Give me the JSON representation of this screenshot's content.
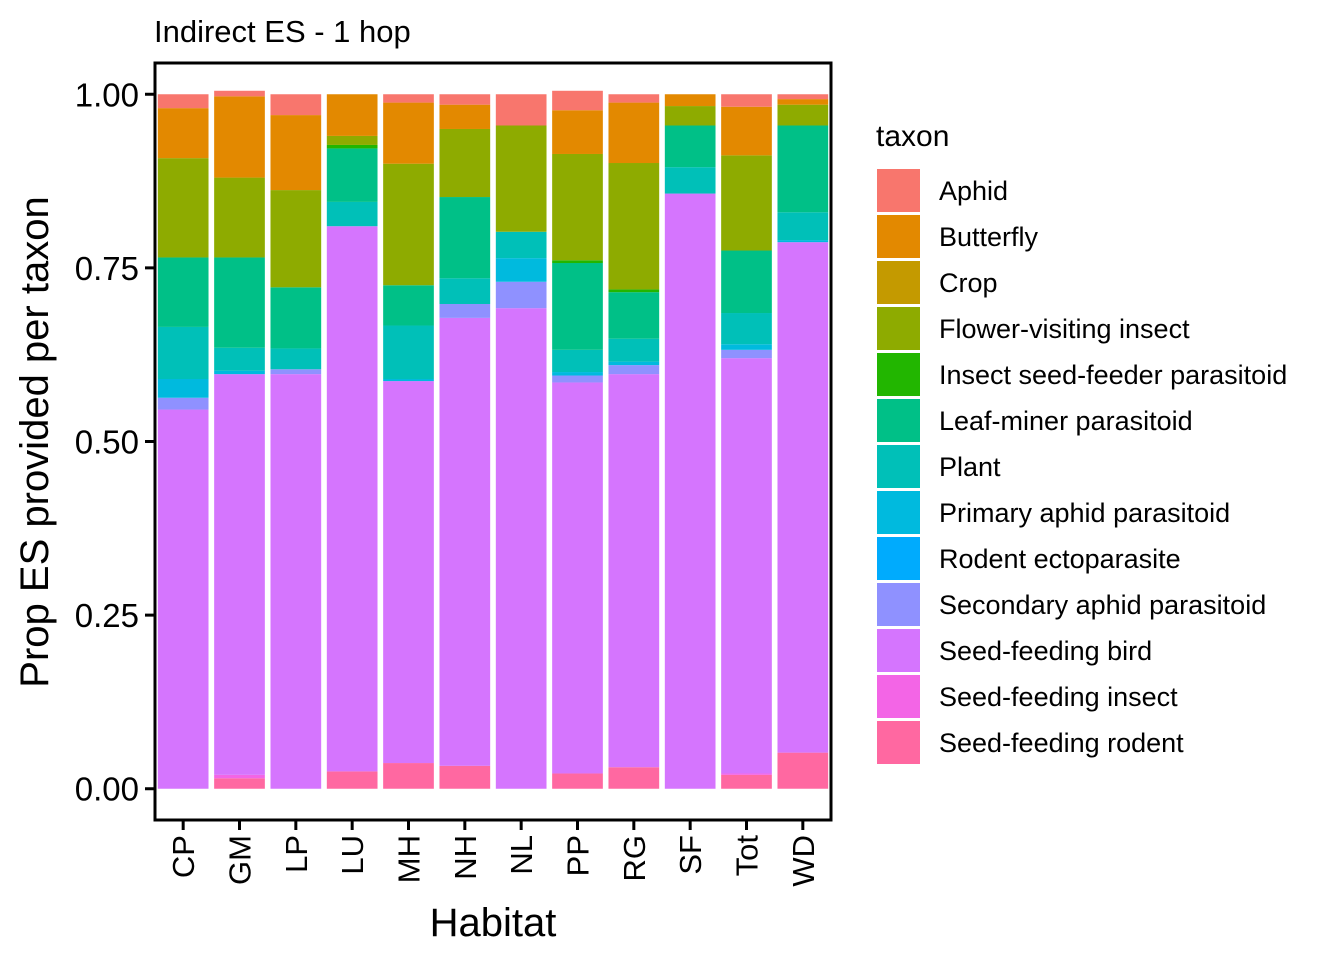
{
  "chart_data": {
    "type": "bar",
    "stacked": true,
    "title": "Indirect ES - 1 hop",
    "xlabel": "Habitat",
    "ylabel": "Prop ES provided per taxon",
    "ylim": [
      -0.045,
      1.045
    ],
    "yticks": [
      "0.00",
      "0.25",
      "0.50",
      "0.75",
      "1.00"
    ],
    "ytick_values": [
      0,
      0.25,
      0.5,
      0.75,
      1.0
    ],
    "grid": false,
    "legend_title": "taxon",
    "legend_position": "right",
    "categories": [
      "CP",
      "GM",
      "LP",
      "LU",
      "MH",
      "NH",
      "NL",
      "PP",
      "RG",
      "SF",
      "Tot",
      "WD"
    ],
    "series": [
      {
        "name": "Seed-feeding rodent",
        "color": "#FF68A1",
        "values": [
          0.0,
          0.015,
          0.0,
          0.025,
          0.037,
          0.033,
          0.0,
          0.022,
          0.031,
          0.0,
          0.02,
          0.052
        ]
      },
      {
        "name": "Seed-feeding insect",
        "color": "#F365E6",
        "values": [
          0.0,
          0.005,
          0.0,
          0.0,
          0.0,
          0.0,
          0.0,
          0.0,
          0.0,
          0.0,
          0.002,
          0.0
        ]
      },
      {
        "name": "Seed-feeding bird",
        "color": "#D575FE",
        "values": [
          0.546,
          0.577,
          0.597,
          0.785,
          0.55,
          0.645,
          0.692,
          0.563,
          0.566,
          0.857,
          0.598,
          0.735
        ]
      },
      {
        "name": "Secondary aphid parasitoid",
        "color": "#8F91FF",
        "values": [
          0.017,
          0.0,
          0.007,
          0.0,
          0.0,
          0.02,
          0.038,
          0.01,
          0.013,
          0.0,
          0.012,
          0.0
        ]
      },
      {
        "name": "Rodent ectoparasite",
        "color": "#00ABFD",
        "values": [
          0.0,
          0.0,
          0.0,
          0.0,
          0.0,
          0.0,
          0.0,
          0.0,
          0.0,
          0.0,
          0.0,
          0.0
        ]
      },
      {
        "name": "Primary aphid parasitoid",
        "color": "#00BADE",
        "values": [
          0.027,
          0.005,
          0.0,
          0.0,
          0.003,
          0.0,
          0.034,
          0.005,
          0.005,
          0.0,
          0.008,
          0.003
        ]
      },
      {
        "name": "Plant",
        "color": "#00C0B8",
        "values": [
          0.075,
          0.033,
          0.03,
          0.035,
          0.077,
          0.037,
          0.038,
          0.032,
          0.033,
          0.038,
          0.045,
          0.04
        ]
      },
      {
        "name": "Leaf-miner parasitoid",
        "color": "#00C087",
        "values": [
          0.1,
          0.13,
          0.088,
          0.077,
          0.058,
          0.117,
          0.0,
          0.125,
          0.067,
          0.06,
          0.09,
          0.125
        ]
      },
      {
        "name": "Insect seed-feeder parasitoid",
        "color": "#22B600",
        "values": [
          0.0,
          0.0,
          0.0,
          0.005,
          0.0,
          0.0,
          0.0,
          0.004,
          0.004,
          0.0,
          0.0,
          0.0
        ]
      },
      {
        "name": "Flower-visiting insect",
        "color": "#8EAB00",
        "values": [
          0.143,
          0.115,
          0.14,
          0.013,
          0.175,
          0.098,
          0.153,
          0.153,
          0.182,
          0.028,
          0.137,
          0.03
        ]
      },
      {
        "name": "Crop",
        "color": "#C49A00",
        "values": [
          0.0,
          0.0,
          0.0,
          0.0,
          0.0,
          0.0,
          0.0,
          0.0,
          0.0,
          0.0,
          0.0,
          0.0
        ]
      },
      {
        "name": "Butterfly",
        "color": "#E38900",
        "values": [
          0.072,
          0.117,
          0.108,
          0.06,
          0.088,
          0.035,
          0.0,
          0.063,
          0.087,
          0.017,
          0.07,
          0.008
        ]
      },
      {
        "name": "Aphid",
        "color": "#F8766D",
        "values": [
          0.02,
          0.008,
          0.03,
          0.0,
          0.012,
          0.015,
          0.045,
          0.028,
          0.012,
          0.0,
          0.018,
          0.007
        ]
      }
    ],
    "legend": [
      {
        "name": "Aphid",
        "color": "#F8766D"
      },
      {
        "name": "Butterfly",
        "color": "#E38900"
      },
      {
        "name": "Crop",
        "color": "#C49A00"
      },
      {
        "name": "Flower-visiting insect",
        "color": "#8EAB00"
      },
      {
        "name": "Insect seed-feeder parasitoid",
        "color": "#22B600"
      },
      {
        "name": "Leaf-miner parasitoid",
        "color": "#00C087"
      },
      {
        "name": "Plant",
        "color": "#00C0B8"
      },
      {
        "name": "Primary aphid parasitoid",
        "color": "#00BADE"
      },
      {
        "name": "Rodent ectoparasite",
        "color": "#00ABFD"
      },
      {
        "name": "Secondary aphid parasitoid",
        "color": "#8F91FF"
      },
      {
        "name": "Seed-feeding bird",
        "color": "#D575FE"
      },
      {
        "name": "Seed-feeding insect",
        "color": "#F365E6"
      },
      {
        "name": "Seed-feeding rodent",
        "color": "#FF68A1"
      }
    ]
  }
}
